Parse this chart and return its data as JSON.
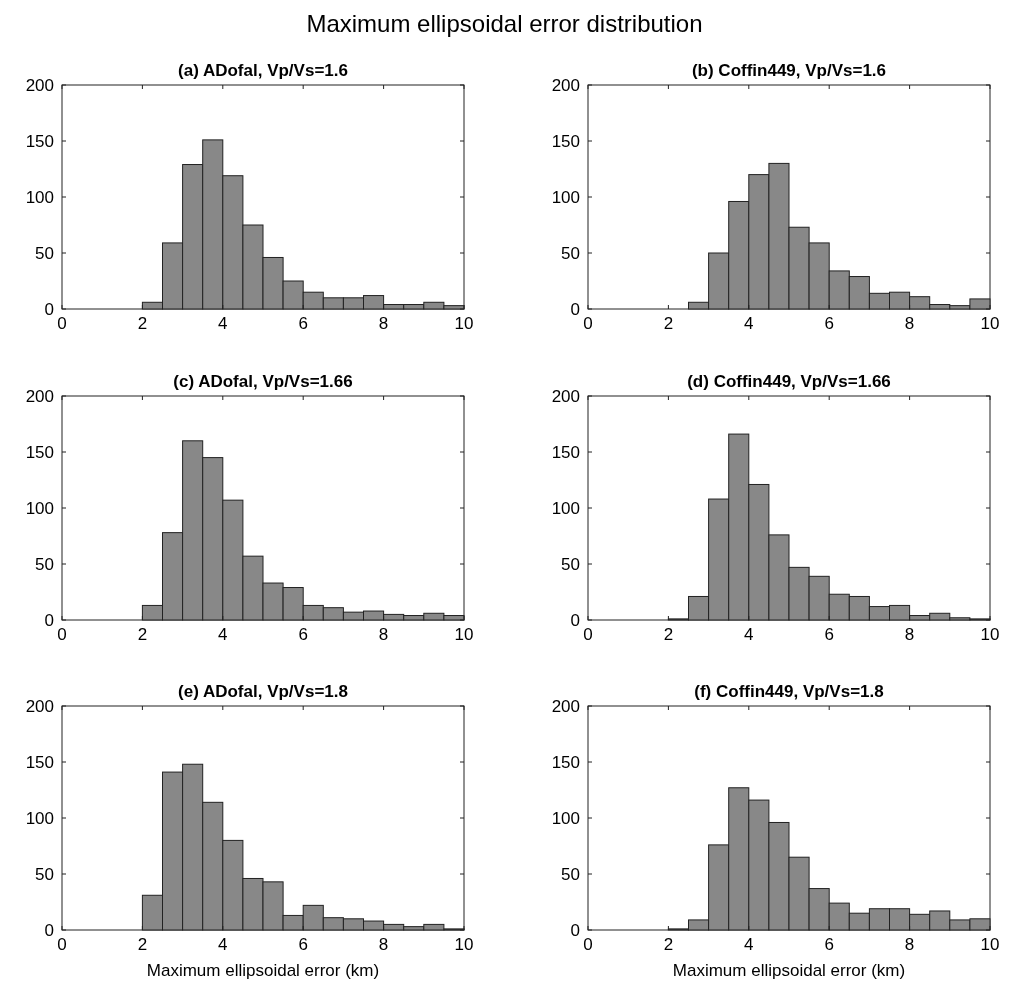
{
  "chart_data": [
    {
      "type": "other",
      "title": "Maximum ellipsoidal error distribution"
    },
    {
      "type": "histogram",
      "title": "(a) ADofal, Vp/Vs=1.6",
      "bins": [
        0,
        0.5,
        1,
        1.5,
        2,
        2.5,
        3,
        3.5,
        4,
        4.5,
        5,
        5.5,
        6,
        6.5,
        7,
        7.5,
        8,
        8.5,
        9,
        9.5,
        10
      ],
      "values": [
        0,
        0,
        0,
        0,
        6,
        59,
        129,
        151,
        119,
        75,
        46,
        25,
        15,
        10,
        10,
        12,
        4,
        4,
        6,
        3
      ],
      "color": "#888888",
      "xlim": [
        0,
        10
      ],
      "xticks": [
        0,
        2,
        4,
        6,
        8,
        10
      ],
      "ylim": [
        0,
        200
      ],
      "yticks": [
        0,
        50,
        100,
        150,
        200
      ]
    },
    {
      "type": "histogram",
      "title": "(b) Coffin449, Vp/Vs=1.6",
      "bins": [
        0,
        0.5,
        1,
        1.5,
        2,
        2.5,
        3,
        3.5,
        4,
        4.5,
        5,
        5.5,
        6,
        6.5,
        7,
        7.5,
        8,
        8.5,
        9,
        9.5,
        10
      ],
      "values": [
        0,
        0,
        0,
        0,
        0,
        6,
        50,
        96,
        120,
        130,
        73,
        59,
        34,
        29,
        14,
        15,
        11,
        4,
        3,
        9
      ],
      "color": "#888888",
      "xlim": [
        0,
        10
      ],
      "xticks": [
        0,
        2,
        4,
        6,
        8,
        10
      ],
      "ylim": [
        0,
        200
      ],
      "yticks": [
        0,
        50,
        100,
        150,
        200
      ]
    },
    {
      "type": "histogram",
      "title": "(c) ADofal, Vp/Vs=1.66",
      "bins": [
        0,
        0.5,
        1,
        1.5,
        2,
        2.5,
        3,
        3.5,
        4,
        4.5,
        5,
        5.5,
        6,
        6.5,
        7,
        7.5,
        8,
        8.5,
        9,
        9.5,
        10
      ],
      "values": [
        0,
        0,
        0,
        0,
        13,
        78,
        160,
        145,
        107,
        57,
        33,
        29,
        13,
        11,
        7,
        8,
        5,
        4,
        6,
        4
      ],
      "color": "#888888",
      "xlim": [
        0,
        10
      ],
      "xticks": [
        0,
        2,
        4,
        6,
        8,
        10
      ],
      "ylim": [
        0,
        200
      ],
      "yticks": [
        0,
        50,
        100,
        150,
        200
      ]
    },
    {
      "type": "histogram",
      "title": "(d) Coffin449, Vp/Vs=1.66",
      "bins": [
        0,
        0.5,
        1,
        1.5,
        2,
        2.5,
        3,
        3.5,
        4,
        4.5,
        5,
        5.5,
        6,
        6.5,
        7,
        7.5,
        8,
        8.5,
        9,
        9.5,
        10
      ],
      "values": [
        0,
        0,
        0,
        0,
        1,
        21,
        108,
        166,
        121,
        76,
        47,
        39,
        23,
        21,
        12,
        13,
        4,
        6,
        2,
        1
      ],
      "color": "#888888",
      "xlim": [
        0,
        10
      ],
      "xticks": [
        0,
        2,
        4,
        6,
        8,
        10
      ],
      "ylim": [
        0,
        200
      ],
      "yticks": [
        0,
        50,
        100,
        150,
        200
      ]
    },
    {
      "type": "histogram",
      "title": "(e) ADofal, Vp/Vs=1.8",
      "xlabel": "Maximum ellipsoidal error (km)",
      "bins": [
        0,
        0.5,
        1,
        1.5,
        2,
        2.5,
        3,
        3.5,
        4,
        4.5,
        5,
        5.5,
        6,
        6.5,
        7,
        7.5,
        8,
        8.5,
        9,
        9.5,
        10
      ],
      "values": [
        0,
        0,
        0,
        0,
        31,
        141,
        148,
        114,
        80,
        46,
        43,
        13,
        22,
        11,
        10,
        8,
        5,
        3,
        5,
        1
      ],
      "color": "#888888",
      "xlim": [
        0,
        10
      ],
      "xticks": [
        0,
        2,
        4,
        6,
        8,
        10
      ],
      "ylim": [
        0,
        200
      ],
      "yticks": [
        0,
        50,
        100,
        150,
        200
      ]
    },
    {
      "type": "histogram",
      "title": "(f) Coffin449, Vp/Vs=1.8",
      "xlabel": "Maximum ellipsoidal error (km)",
      "bins": [
        0,
        0.5,
        1,
        1.5,
        2,
        2.5,
        3,
        3.5,
        4,
        4.5,
        5,
        5.5,
        6,
        6.5,
        7,
        7.5,
        8,
        8.5,
        9,
        9.5,
        10
      ],
      "values": [
        0,
        0,
        0,
        0,
        1,
        9,
        76,
        127,
        116,
        96,
        65,
        37,
        24,
        15,
        19,
        19,
        14,
        17,
        9,
        10
      ],
      "color": "#888888",
      "xlim": [
        0,
        10
      ],
      "xticks": [
        0,
        2,
        4,
        6,
        8,
        10
      ],
      "ylim": [
        0,
        200
      ],
      "yticks": [
        0,
        50,
        100,
        150,
        200
      ]
    }
  ]
}
